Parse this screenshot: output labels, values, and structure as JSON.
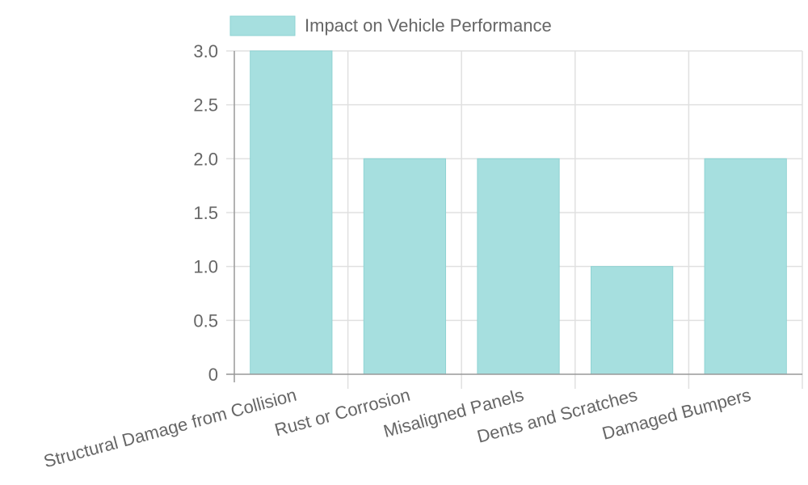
{
  "chart_data": {
    "type": "bar",
    "title": "",
    "xlabel": "",
    "ylabel": "",
    "categories": [
      "Structural Damage from Collision",
      "Rust or Corrosion",
      "Misaligned Panels",
      "Dents and Scratches",
      "Damaged Bumpers"
    ],
    "series": [
      {
        "name": "Impact on Vehicle Performance",
        "values": [
          3,
          2,
          2,
          1,
          2
        ]
      }
    ],
    "ylim": [
      0,
      3
    ],
    "yticks": [
      "0",
      "0.5",
      "1.0",
      "1.5",
      "2.0",
      "2.5",
      "3.0"
    ],
    "grid": true,
    "legend_position": "top",
    "colors": {
      "bar_fill": "#a6dfdf",
      "bar_stroke": "#8fd3d3",
      "grid": "#e0e0e0",
      "axis": "#999999",
      "text": "#666666"
    }
  }
}
